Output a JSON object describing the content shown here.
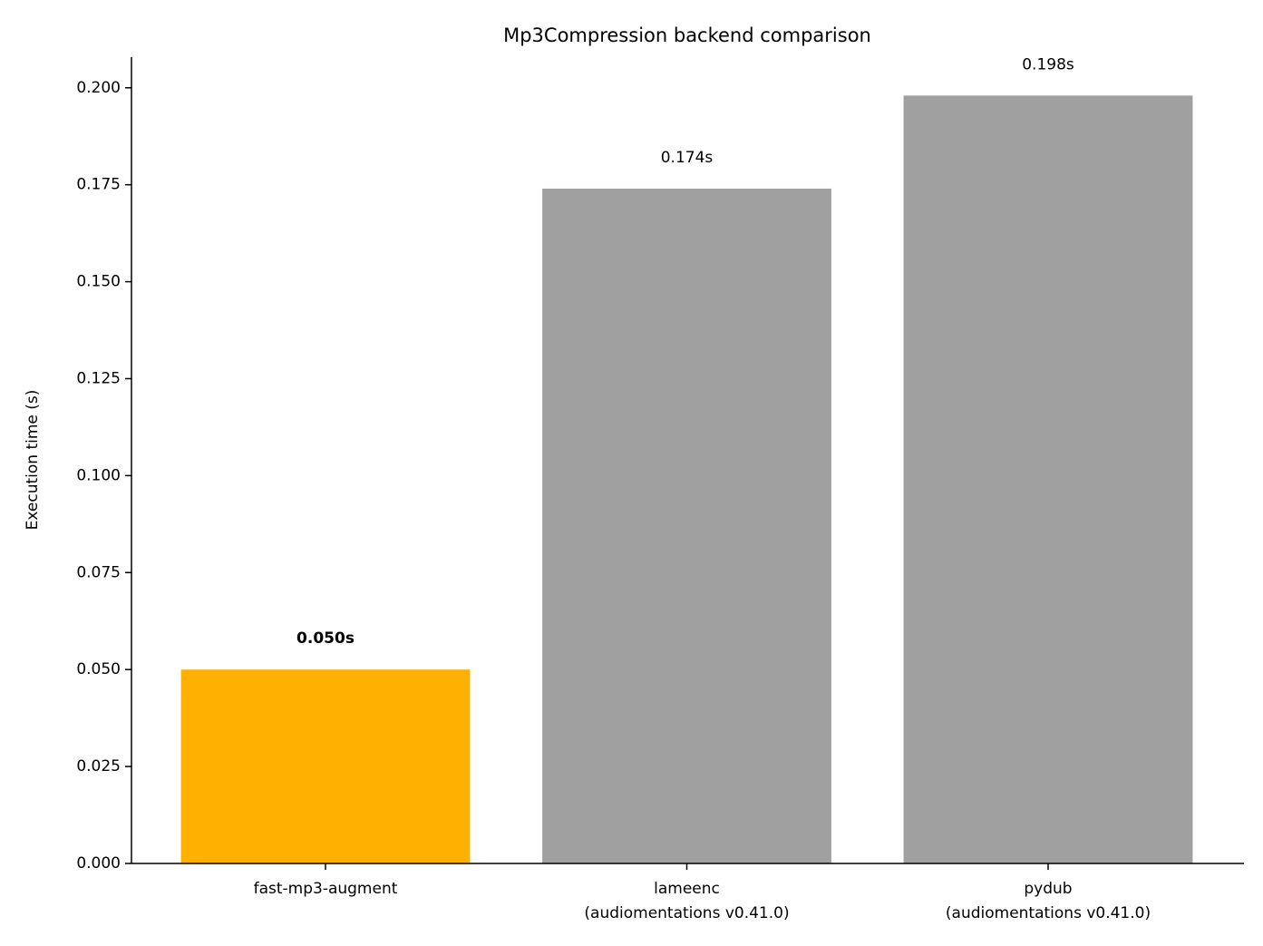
{
  "chart_data": {
    "type": "bar",
    "title": "Mp3Compression backend comparison",
    "y_label": "Execution time (s)",
    "categories": [
      "fast-mp3-augment",
      "lameenc\n(audiomentations v0.41.0)",
      "pydub\n(audiomentations v0.41.0)"
    ],
    "values": [
      0.05,
      0.174,
      0.198
    ],
    "value_labels": [
      "0.050s",
      "0.174s",
      "0.198s"
    ],
    "value_label_bold": [
      true,
      false,
      false
    ],
    "colors": [
      "#ffb000",
      "#a0a0a0",
      "#a0a0a0"
    ],
    "ylim": [
      0,
      0.2079
    ],
    "yticks": [
      {
        "value": 0,
        "label": "0.000"
      },
      {
        "value": 0.025,
        "label": "0.025"
      },
      {
        "value": 0.05,
        "label": "0.050"
      },
      {
        "value": 0.075,
        "label": "0.075"
      },
      {
        "value": 0.1,
        "label": "0.100"
      },
      {
        "value": 0.125,
        "label": "0.125"
      },
      {
        "value": 0.15,
        "label": "0.150"
      },
      {
        "value": 0.175,
        "label": "0.175"
      },
      {
        "value": 0.2,
        "label": "0.200"
      }
    ],
    "grid": false
  }
}
